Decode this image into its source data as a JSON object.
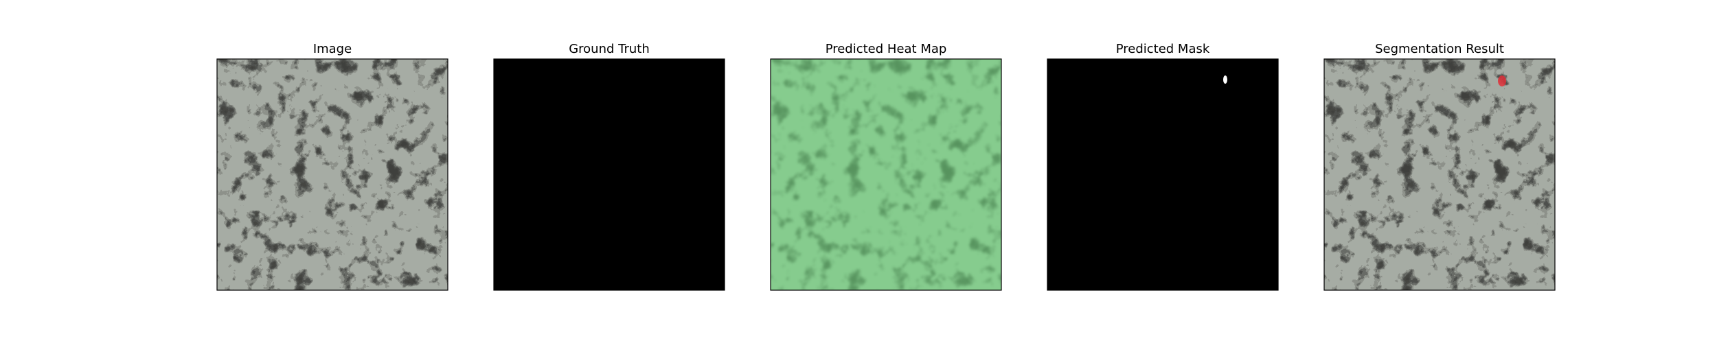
{
  "figure": {
    "panels": [
      {
        "id": "image",
        "title": "Image",
        "kind": "texture",
        "tint": "gray"
      },
      {
        "id": "ground-truth",
        "title": "Ground Truth",
        "kind": "mask-empty"
      },
      {
        "id": "predicted-heat-map",
        "title": "Predicted Heat Map",
        "kind": "texture",
        "tint": "green"
      },
      {
        "id": "predicted-mask",
        "title": "Predicted Mask",
        "kind": "mask-spot"
      },
      {
        "id": "segmentation-result",
        "title": "Segmentation Result",
        "kind": "texture-overlay",
        "tint": "gray"
      }
    ],
    "colors": {
      "background": "#ffffff",
      "frame": "#000000",
      "mask_background": "#000000",
      "mask_foreground": "#ffffff",
      "overlay": "#e0303a",
      "gray_base": "#a6aca4",
      "gray_dark": "#3f403d",
      "green_base": "#86cc8e",
      "green_dark": "#4b8552"
    }
  }
}
